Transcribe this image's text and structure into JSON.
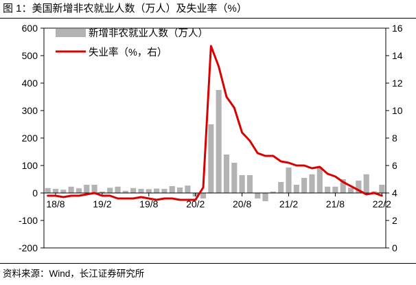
{
  "figure": {
    "title": "图 1：美国新增非农就业人数（万人）及失业率（%）",
    "source": "资料来源：Wind，长江证券研究所"
  },
  "chart_data": {
    "type": "bar+line",
    "title": "美国新增非农就业人数（万人）及失业率（%）",
    "x": [
      "18/7",
      "18/8",
      "18/9",
      "18/10",
      "18/11",
      "18/12",
      "19/1",
      "19/2",
      "19/3",
      "19/4",
      "19/5",
      "19/6",
      "19/7",
      "19/8",
      "19/9",
      "19/10",
      "19/11",
      "19/12",
      "20/1",
      "20/2",
      "20/3",
      "20/4",
      "20/5",
      "20/6",
      "20/7",
      "20/8",
      "20/9",
      "20/10",
      "20/11",
      "20/12",
      "21/1",
      "21/2",
      "21/3",
      "21/4",
      "21/5",
      "21/6",
      "21/7",
      "21/8",
      "21/9",
      "21/10",
      "21/11",
      "21/12",
      "22/1",
      "22/2"
    ],
    "x_tick_labels": [
      "18/8",
      "19/2",
      "19/8",
      "20/2",
      "20/8",
      "21/2",
      "21/8",
      "22/2"
    ],
    "series": [
      {
        "name": "新增非农就业人数（万人）",
        "type": "bar",
        "axis": "left",
        "color": "#b3b3b3",
        "values": [
          18,
          15,
          12,
          23,
          17,
          30,
          30,
          5,
          19,
          23,
          8,
          18,
          15,
          14,
          16,
          15,
          25,
          20,
          27,
          -13,
          -20,
          250,
          375,
          140,
          110,
          65,
          65,
          -20,
          -30,
          5,
          40,
          93,
          30,
          55,
          68,
          93,
          23,
          23,
          50,
          19,
          45,
          68,
          6,
          30
        ]
      },
      {
        "name": "失业率（%，右）",
        "type": "line",
        "axis": "right",
        "color": "#d90000",
        "values": [
          3.8,
          3.8,
          3.7,
          3.8,
          3.8,
          3.9,
          4.0,
          3.8,
          3.8,
          3.6,
          3.6,
          3.6,
          3.7,
          3.6,
          3.5,
          3.6,
          3.6,
          3.5,
          3.5,
          3.5,
          4.4,
          14.7,
          13.2,
          11.0,
          10.2,
          8.4,
          7.8,
          6.9,
          6.7,
          6.7,
          6.3,
          6.2,
          6.0,
          6.0,
          5.8,
          5.9,
          5.4,
          5.2,
          4.8,
          4.5,
          4.2,
          3.9,
          4.0,
          3.8
        ]
      }
    ],
    "y_left": {
      "min": -200,
      "max": 600,
      "ticks": [
        -200,
        -100,
        0,
        100,
        200,
        300,
        400,
        500,
        600
      ]
    },
    "y_right": {
      "min": 0,
      "max": 16,
      "ticks": [
        0,
        2,
        4,
        6,
        8,
        10,
        12,
        14,
        16
      ]
    },
    "legend_position": "top-left",
    "grid": false
  }
}
